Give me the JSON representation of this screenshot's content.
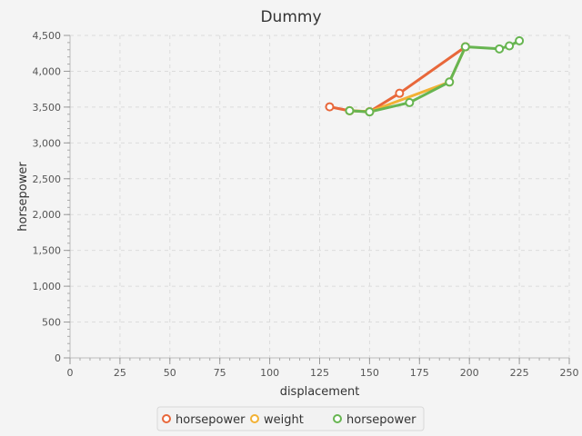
{
  "chart_data": {
    "type": "line",
    "title": "Dummy",
    "xlabel": "displacement",
    "ylabel": "horsepower",
    "xlim": [
      0,
      250
    ],
    "ylim": [
      0,
      4500
    ],
    "x_ticks": [
      0,
      25,
      50,
      75,
      100,
      125,
      150,
      175,
      200,
      225,
      250
    ],
    "y_ticks": [
      0,
      500,
      1000,
      1500,
      2000,
      2500,
      3000,
      3500,
      4000,
      4500
    ],
    "x_tick_labels": [
      "0",
      "25",
      "50",
      "75",
      "100",
      "125",
      "150",
      "175",
      "200",
      "225",
      "250"
    ],
    "y_tick_labels": [
      "0",
      "500",
      "1,000",
      "1,500",
      "2,000",
      "2,500",
      "3,000",
      "3,500",
      "4,000",
      "4,500"
    ],
    "grid": true,
    "legend_position": "bottom",
    "series": [
      {
        "name": "horsepower",
        "color": "#e8673a",
        "points": [
          [
            130,
            3504
          ],
          [
            140,
            3449
          ],
          [
            150,
            3436
          ],
          [
            165,
            3693
          ],
          [
            198,
            4341
          ]
        ]
      },
      {
        "name": "weight",
        "color": "#f2b134",
        "points": [
          [
            140,
            3449
          ],
          [
            150,
            3436
          ],
          [
            190,
            3850
          ],
          [
            198,
            4341
          ]
        ]
      },
      {
        "name": "horsepower",
        "color": "#67b551",
        "points": [
          [
            140,
            3449
          ],
          [
            150,
            3433
          ],
          [
            170,
            3563
          ],
          [
            190,
            3850
          ],
          [
            198,
            4341
          ],
          [
            215,
            4312
          ],
          [
            220,
            4354
          ],
          [
            225,
            4425
          ]
        ]
      }
    ]
  }
}
